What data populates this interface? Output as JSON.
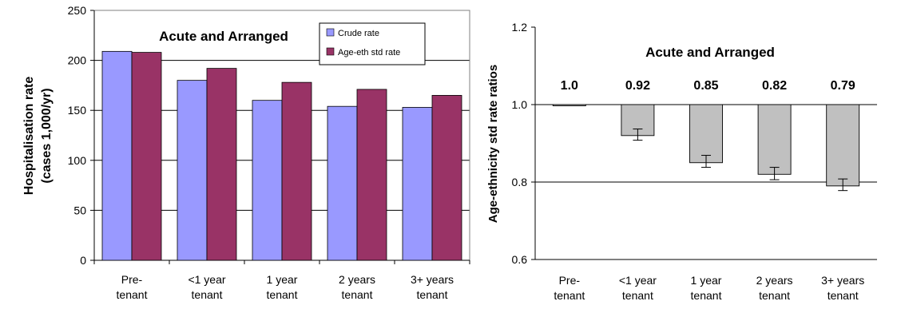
{
  "chart_data": [
    {
      "type": "bar",
      "title": "Acute and Arranged",
      "ylabel": [
        "Hospitalisation rate",
        "(cases 1,000/yr)"
      ],
      "xlabel": "",
      "categories": [
        [
          "Pre-",
          "tenant"
        ],
        [
          "<1 year",
          "tenant"
        ],
        [
          "1 year",
          "tenant"
        ],
        [
          "2 years",
          "tenant"
        ],
        [
          "3+ years",
          "tenant"
        ]
      ],
      "series": [
        {
          "name": "Crude rate",
          "color": "#9999ff",
          "values": [
            209,
            180,
            160,
            154,
            153
          ]
        },
        {
          "name": "Age-eth std rate",
          "color": "#993366",
          "values": [
            208,
            192,
            178,
            171,
            165
          ]
        }
      ],
      "ylim": [
        0,
        250
      ],
      "yticks": [
        "0",
        "50",
        "100",
        "150",
        "200",
        "250"
      ],
      "grid": true,
      "legend": "top-right"
    },
    {
      "type": "bar",
      "title": "Acute and Arranged",
      "ylabel": [
        "Age-ethnicity std rate ratios"
      ],
      "xlabel": "",
      "categories": [
        [
          "Pre-",
          "tenant"
        ],
        [
          "<1 year",
          "tenant"
        ],
        [
          "1 year",
          "tenant"
        ],
        [
          "2 years",
          "tenant"
        ],
        [
          "3+ years",
          "tenant"
        ]
      ],
      "baseline": 1.0,
      "bar_color": "#c0c0c0",
      "values": [
        1.0,
        0.92,
        0.85,
        0.82,
        0.79
      ],
      "value_labels": [
        "1.0",
        "0.92",
        "0.85",
        "0.82",
        "0.79"
      ],
      "error_low": [
        1.0,
        0.908,
        0.838,
        0.806,
        0.778
      ],
      "error_high": [
        1.0,
        0.937,
        0.869,
        0.838,
        0.808
      ],
      "ylim": [
        0.6,
        1.2
      ],
      "yticks": [
        "0.6",
        "0.8",
        "1.0",
        "1.2"
      ],
      "grid": true
    }
  ]
}
